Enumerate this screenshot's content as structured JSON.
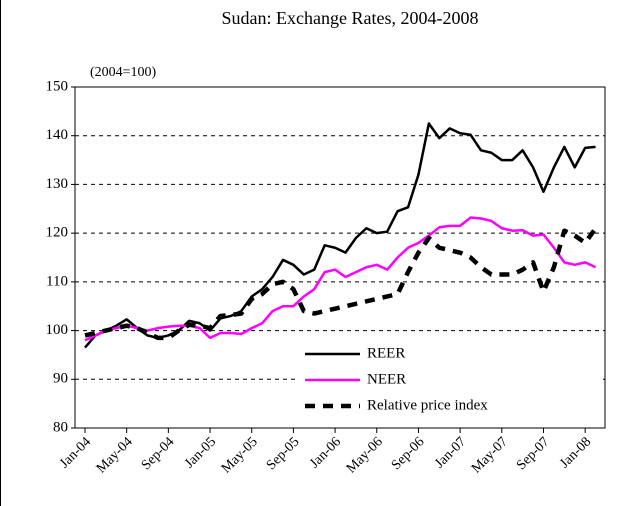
{
  "chart_data": {
    "type": "line",
    "title": "Sudan: Exchange Rates, 2004-2008",
    "annotation": "(2004=100)",
    "categories": [
      "Jan-04",
      null,
      null,
      null,
      "May-04",
      null,
      null,
      null,
      "Sep-04",
      null,
      null,
      null,
      "Jan-05",
      null,
      null,
      null,
      "May-05",
      null,
      null,
      null,
      "Sep-05",
      null,
      null,
      null,
      "Jan-06",
      null,
      null,
      null,
      "May-06",
      null,
      null,
      null,
      "Sep-06",
      null,
      null,
      null,
      "Jan-07",
      null,
      null,
      null,
      "May-07",
      null,
      null,
      null,
      "Sep-07",
      null,
      null,
      null,
      "Jan-08",
      null
    ],
    "ylim": [
      80,
      150
    ],
    "yticks": [
      80,
      90,
      100,
      110,
      120,
      130,
      140,
      150
    ],
    "grid": true,
    "legend": "lower right",
    "series": [
      {
        "name": "REER",
        "color": "#000000",
        "dashed": false,
        "values": [
          96.5,
          99,
          100,
          101,
          102.3,
          100.5,
          99,
          98.5,
          99,
          100,
          102,
          101.5,
          100,
          102.5,
          103,
          104,
          107,
          108.5,
          111,
          114.5,
          113.5,
          111.5,
          112.5,
          117.5,
          117,
          116,
          119,
          121,
          120,
          120.3,
          124.5,
          125.3,
          132,
          142.5,
          139.5,
          141.5,
          140.5,
          140.2,
          137,
          136.5,
          135,
          135,
          137,
          133.5,
          128.5,
          133.5,
          137.7,
          133.5,
          137.5,
          137.7
        ]
      },
      {
        "name": "NEER",
        "color": "#ff00ff",
        "dashed": false,
        "values": [
          98,
          99,
          100,
          100.5,
          101,
          100.5,
          100,
          100.5,
          100.8,
          101,
          101,
          100.5,
          98.5,
          99.5,
          99.5,
          99.3,
          100.5,
          101.5,
          104,
          105,
          105,
          107,
          108.5,
          112,
          112.5,
          111,
          112,
          113,
          113.5,
          112.5,
          115,
          117,
          118,
          119.5,
          121.2,
          121.5,
          121.5,
          123.2,
          123,
          122.5,
          121,
          120.5,
          120.6,
          119.5,
          119.7,
          117,
          114,
          113.5,
          114,
          113
        ]
      },
      {
        "name": "Relative price index",
        "color": "#000000",
        "dashed": true,
        "values": [
          99,
          99.5,
          100,
          100.5,
          101,
          100.5,
          99.5,
          98.5,
          98.5,
          100,
          101.2,
          101,
          100.5,
          103,
          103.2,
          103.5,
          106.5,
          107.5,
          109.5,
          110,
          108.5,
          104,
          103.5,
          104,
          104.5,
          105,
          105.5,
          106,
          106.5,
          107,
          107.5,
          112,
          116,
          119,
          117,
          116.5,
          116,
          115,
          113,
          111.5,
          111.5,
          111.5,
          112.5,
          114,
          108,
          113,
          120.5,
          119.5,
          118,
          121
        ]
      }
    ]
  }
}
